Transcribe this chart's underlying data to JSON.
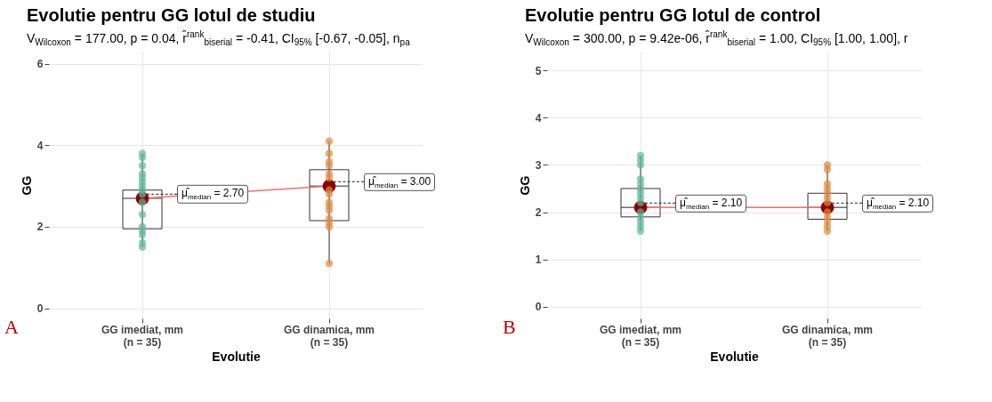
{
  "chart_data": [
    {
      "type": "box",
      "title": "Evolutie pentru GG lotul de studiu",
      "subtitle": "V$_{Wilcoxon}$ = 177.00, p = 0.04, r̂$^{rank}$$_{biserial}$ = -0.41, CI$_{95%}$ [-0.67, -0.05], n$_{pa}$",
      "xlabel": "Evolutie",
      "ylabel": "GG",
      "categories": [
        "GG imediat, mm\n(n = 35)",
        "GG dinamica, mm\n(n = 35)"
      ],
      "ylim": [
        -0.25,
        6.3
      ],
      "yticks": [
        0,
        2,
        4,
        6
      ],
      "grid": true,
      "boxes": [
        {
          "low": 1.5,
          "q1": 1.95,
          "median": 2.7,
          "q3": 2.9,
          "high": 3.8
        },
        {
          "low": 1.1,
          "q1": 2.15,
          "median": 3.0,
          "q3": 3.4,
          "high": 4.1
        }
      ],
      "series": [
        {
          "type": "scatter",
          "color": "#5fb89a",
          "x": [
            "GG imediat, mm\n(n = 35)",
            "GG imediat, mm\n(n = 35)",
            "GG imediat, mm\n(n = 35)",
            "GG imediat, mm\n(n = 35)",
            "GG imediat, mm\n(n = 35)",
            "GG imediat, mm\n(n = 35)",
            "GG imediat, mm\n(n = 35)",
            "GG imediat, mm\n(n = 35)",
            "GG imediat, mm\n(n = 35)",
            "GG imediat, mm\n(n = 35)",
            "GG imediat, mm\n(n = 35)",
            "GG imediat, mm\n(n = 35)",
            "GG imediat, mm\n(n = 35)",
            "GG imediat, mm\n(n = 35)",
            "GG imediat, mm\n(n = 35)",
            "GG imediat, mm\n(n = 35)"
          ],
          "values": [
            3.8,
            3.7,
            3.5,
            3.3,
            3.2,
            3.1,
            3.0,
            2.9,
            2.8,
            2.6,
            2.3,
            2.0,
            1.9,
            1.8,
            1.6,
            1.5
          ]
        },
        {
          "type": "scatter",
          "color": "#e08a3c",
          "x": [
            "GG dinamica, mm\n(n = 35)",
            "GG dinamica, mm\n(n = 35)",
            "GG dinamica, mm\n(n = 35)",
            "GG dinamica, mm\n(n = 35)",
            "GG dinamica, mm\n(n = 35)",
            "GG dinamica, mm\n(n = 35)",
            "GG dinamica, mm\n(n = 35)",
            "GG dinamica, mm\n(n = 35)",
            "GG dinamica, mm\n(n = 35)",
            "GG dinamica, mm\n(n = 35)",
            "GG dinamica, mm\n(n = 35)",
            "GG dinamica, mm\n(n = 35)",
            "GG dinamica, mm\n(n = 35)",
            "GG dinamica, mm\n(n = 35)",
            "GG dinamica, mm\n(n = 35)"
          ],
          "values": [
            4.1,
            3.8,
            3.6,
            3.5,
            3.3,
            3.2,
            2.8,
            2.6,
            2.5,
            2.4,
            2.2,
            2.1,
            2.0,
            1.1,
            2.9
          ]
        },
        {
          "type": "line",
          "color": "#ff6b6b",
          "marker": "circle",
          "values": [
            2.7,
            3.0
          ]
        }
      ],
      "annotations": [
        {
          "text": "μ̂$_{median}$ = 2.70",
          "x": "GG imediat, mm\n(n = 35)",
          "y": 2.7
        },
        {
          "text": "μ̂$_{median}$ = 3.00",
          "x": "GG dinamica, mm\n(n = 35)",
          "y": 3.0
        },
        "A"
      ]
    },
    {
      "type": "box",
      "title": "Evolutie pentru GG lotul de control",
      "subtitle": "V$_{Wilcoxon}$ = 300.00, p = 9.42e-06, r̂$^{rank}$$_{biserial}$ = 1.00, CI$_{95%}$ [1.00, 1.00], r",
      "xlabel": "Evolutie",
      "ylabel": "GG",
      "categories": [
        "GG imediat, mm\n(n = 35)",
        "GG dinamica, mm\n(n = 35)"
      ],
      "ylim": [
        -0.25,
        5.4
      ],
      "yticks": [
        0,
        1,
        2,
        3,
        4,
        5
      ],
      "grid": true,
      "boxes": [
        {
          "low": 1.6,
          "q1": 1.9,
          "median": 2.1,
          "q3": 2.5,
          "high": 3.2
        },
        {
          "low": 1.6,
          "q1": 1.85,
          "median": 2.1,
          "q3": 2.4,
          "high": 3.0
        }
      ],
      "series": [
        {
          "type": "scatter",
          "color": "#5fb89a",
          "x": [
            "GG imediat, mm\n(n = 35)",
            "GG imediat, mm\n(n = 35)",
            "GG imediat, mm\n(n = 35)",
            "GG imediat, mm\n(n = 35)",
            "GG imediat, mm\n(n = 35)",
            "GG imediat, mm\n(n = 35)",
            "GG imediat, mm\n(n = 35)",
            "GG imediat, mm\n(n = 35)",
            "GG imediat, mm\n(n = 35)",
            "GG imediat, mm\n(n = 35)",
            "GG imediat, mm\n(n = 35)",
            "GG imediat, mm\n(n = 35)",
            "GG imediat, mm\n(n = 35)",
            "GG imediat, mm\n(n = 35)"
          ],
          "values": [
            3.2,
            3.1,
            3.0,
            2.7,
            2.6,
            2.5,
            2.4,
            2.3,
            2.2,
            2.0,
            1.9,
            1.8,
            1.7,
            1.6
          ]
        },
        {
          "type": "scatter",
          "color": "#e08a3c",
          "x": [
            "GG dinamica, mm\n(n = 35)",
            "GG dinamica, mm\n(n = 35)",
            "GG dinamica, mm\n(n = 35)",
            "GG dinamica, mm\n(n = 35)",
            "GG dinamica, mm\n(n = 35)",
            "GG dinamica, mm\n(n = 35)",
            "GG dinamica, mm\n(n = 35)",
            "GG dinamica, mm\n(n = 35)",
            "GG dinamica, mm\n(n = 35)",
            "GG dinamica, mm\n(n = 35)",
            "GG dinamica, mm\n(n = 35)",
            "GG dinamica, mm\n(n = 35)"
          ],
          "values": [
            3.0,
            2.9,
            2.6,
            2.5,
            2.4,
            2.3,
            2.2,
            2.0,
            1.9,
            1.8,
            1.7,
            1.6
          ]
        },
        {
          "type": "line",
          "color": "#ff6b6b",
          "marker": "circle",
          "values": [
            2.1,
            2.1
          ]
        }
      ],
      "annotations": [
        {
          "text": "μ̂$_{median}$ = 2.10",
          "x": "GG imediat, mm\n(n = 35)",
          "y": 2.1
        },
        {
          "text": "μ̂$_{median}$ = 2.10",
          "x": "GG dinamica, mm\n(n = 35)",
          "y": 2.1
        },
        "B"
      ]
    }
  ]
}
